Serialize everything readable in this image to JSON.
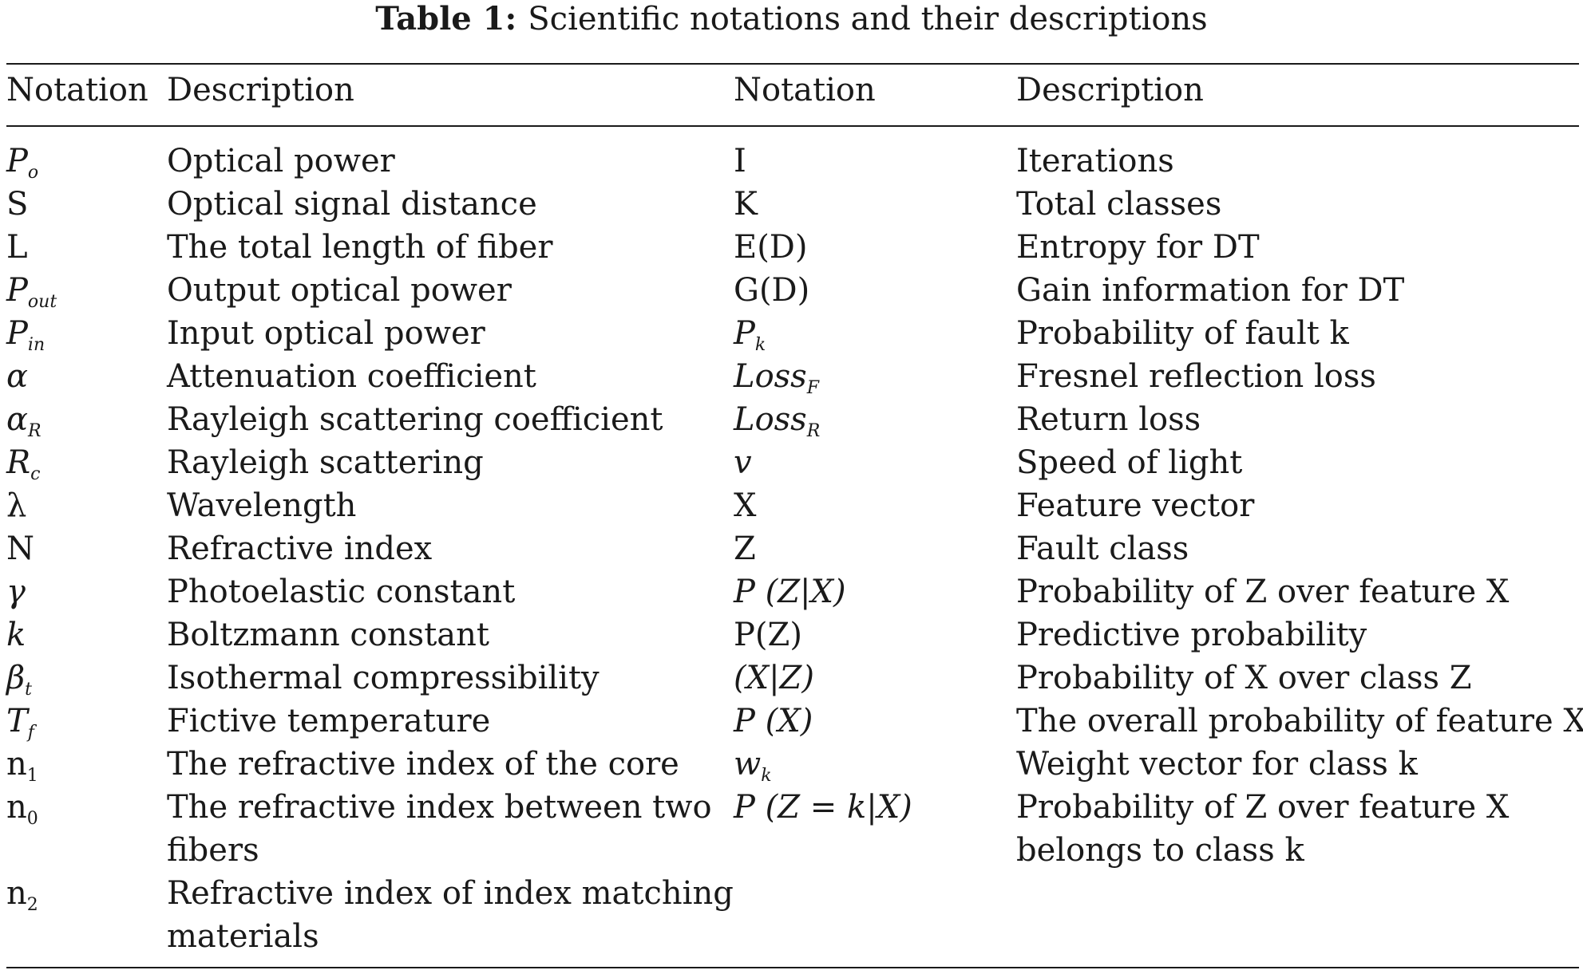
{
  "caption": {
    "label": "Table 1:",
    "text": "Scientific notations and their descriptions"
  },
  "headers": {
    "notation_1": "Notation",
    "description_1": "Description",
    "notation_2": "Notation",
    "description_2": "Description"
  },
  "rows": [
    {
      "n1_base": "P",
      "n1_sub": "o",
      "d1_line1": "Optical power",
      "d1_line2": "",
      "n2_base": "I",
      "n2_sub": "",
      "d2_line1": "Iterations",
      "d2_line2": ""
    },
    {
      "n1_base": "S",
      "n1_sub": "",
      "d1_line1": "Optical signal distance",
      "d1_line2": "",
      "n2_base": "K",
      "n2_sub": "",
      "d2_line1": "Total classes",
      "d2_line2": ""
    },
    {
      "n1_base": "L",
      "n1_sub": "",
      "d1_line1": "The total length of fiber",
      "d1_line2": "",
      "n2_base": "E(D)",
      "n2_sub": "",
      "d2_line1": "Entropy for DT",
      "d2_line2": ""
    },
    {
      "n1_base": "P",
      "n1_sub": "out",
      "d1_line1": "Output optical power",
      "d1_line2": "",
      "n2_base": "G(D)",
      "n2_sub": "",
      "d2_line1": "Gain information for DT",
      "d2_line2": ""
    },
    {
      "n1_base": "P",
      "n1_sub": "in",
      "d1_line1": "Input optical power",
      "d1_line2": "",
      "n2_base": "P",
      "n2_sub": "k",
      "d2_line1": "Probability of fault k",
      "d2_line2": ""
    },
    {
      "n1_base": "α",
      "n1_sub": "",
      "d1_line1": "Attenuation coefficient",
      "d1_line2": "",
      "n2_base": "Loss",
      "n2_sub": "F",
      "d2_line1": "Fresnel reflection loss",
      "d2_line2": ""
    },
    {
      "n1_base": "α",
      "n1_sub": "R",
      "d1_line1": "Rayleigh scattering coefficient",
      "d1_line2": "",
      "n2_base": "Loss",
      "n2_sub": "R",
      "d2_line1": "Return loss",
      "d2_line2": ""
    },
    {
      "n1_base": "R",
      "n1_sub": "c",
      "d1_line1": "Rayleigh scattering",
      "d1_line2": "",
      "n2_base": "v",
      "n2_sub": "",
      "d2_line1": "Speed of light",
      "d2_line2": ""
    },
    {
      "n1_base": "λ",
      "n1_sub": "",
      "d1_line1": "Wavelength",
      "d1_line2": "",
      "n2_base": "X",
      "n2_sub": "",
      "d2_line1": "Feature vector",
      "d2_line2": ""
    },
    {
      "n1_base": "N",
      "n1_sub": "",
      "d1_line1": "Refractive index",
      "d1_line2": "",
      "n2_base": "Z",
      "n2_sub": "",
      "d2_line1": "Fault class",
      "d2_line2": ""
    },
    {
      "n1_base": "γ",
      "n1_sub": "",
      "d1_line1": "Photoelastic constant",
      "d1_line2": "",
      "n2_base": "P (Z|X)",
      "n2_sub": "",
      "d2_line1": "Probability of Z over feature X",
      "d2_line2": ""
    },
    {
      "n1_base": "k",
      "n1_sub": "",
      "d1_line1": "Boltzmann constant",
      "d1_line2": "",
      "n2_base": "P(Z)",
      "n2_sub": "",
      "d2_line1": "Predictive probability",
      "d2_line2": ""
    },
    {
      "n1_base": "β",
      "n1_sub": "t",
      "d1_line1": "Isothermal compressibility",
      "d1_line2": "",
      "n2_base": "(X|Z)",
      "n2_sub": "",
      "d2_line1": "Probability of X over class Z",
      "d2_line2": ""
    },
    {
      "n1_base": "T",
      "n1_sub": "f",
      "d1_line1": "Fictive temperature",
      "d1_line2": "",
      "n2_base": "P (X)",
      "n2_sub": "",
      "d2_line1": "The overall probability of feature X",
      "d2_line2": ""
    },
    {
      "n1_base": "n",
      "n1_sub": "1",
      "d1_line1": "The refractive index of the core",
      "d1_line2": "",
      "n2_base": "w",
      "n2_sub": "k",
      "d2_line1": "Weight vector for class k",
      "d2_line2": ""
    },
    {
      "n1_base": "n",
      "n1_sub": "0",
      "d1_line1": "The refractive index between two",
      "d1_line2": "fibers",
      "n2_base": "P (Z = k|X)",
      "n2_sub": "",
      "d2_line1": "Probability of Z over feature X",
      "d2_line2": "belongs to class k"
    },
    {
      "n1_base": "n",
      "n1_sub": "2",
      "d1_line1": "Refractive index of index matching",
      "d1_line2": "materials",
      "n2_base": "",
      "n2_sub": "",
      "d2_line1": "",
      "d2_line2": ""
    }
  ]
}
